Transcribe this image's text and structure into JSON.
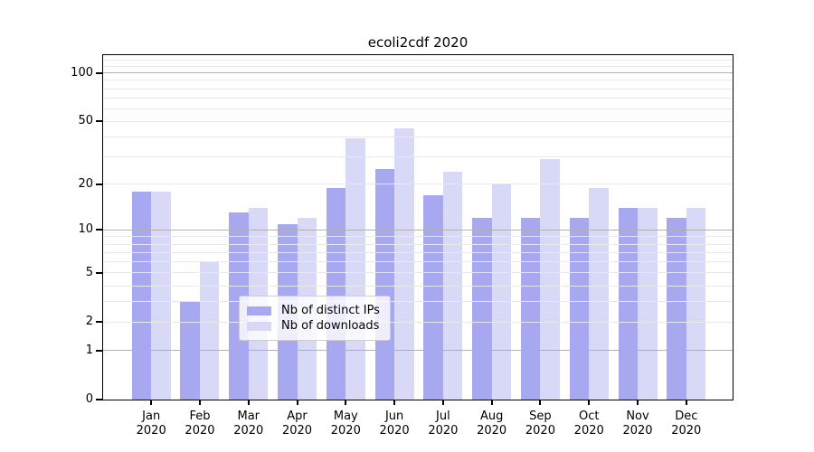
{
  "chart_data": {
    "type": "bar",
    "title": "ecoli2cdf 2020",
    "year": "2020",
    "categories": [
      "Jan",
      "Feb",
      "Mar",
      "Apr",
      "May",
      "Jun",
      "Jul",
      "Aug",
      "Sep",
      "Oct",
      "Nov",
      "Dec"
    ],
    "series": [
      {
        "name": "Nb of distinct IPs",
        "color": "#a8a8f0",
        "values": [
          18,
          3,
          13,
          11,
          19,
          25,
          17,
          12,
          12,
          12,
          14,
          12
        ]
      },
      {
        "name": "Nb of downloads",
        "color": "#d8d8f7",
        "values": [
          18,
          6,
          14,
          12,
          39,
          45,
          24,
          20,
          29,
          19,
          14,
          14
        ]
      }
    ],
    "yscale": "log1p",
    "ylim": [
      0,
      129
    ],
    "y_tick_labels": [
      100,
      50,
      20,
      10,
      5,
      2,
      1,
      0
    ],
    "grid_major_values": [
      1,
      10,
      100
    ],
    "grid_minor_values": [
      2,
      3,
      4,
      5,
      6,
      7,
      8,
      9,
      20,
      30,
      40,
      50,
      60,
      70,
      80,
      90,
      110,
      120
    ],
    "grid": "on",
    "legend_position": "lower center",
    "colors": {
      "grid_major": "#b0b0b0",
      "grid_minor": "#e9e9e9",
      "spine": "#000000",
      "text": "#000000"
    }
  }
}
